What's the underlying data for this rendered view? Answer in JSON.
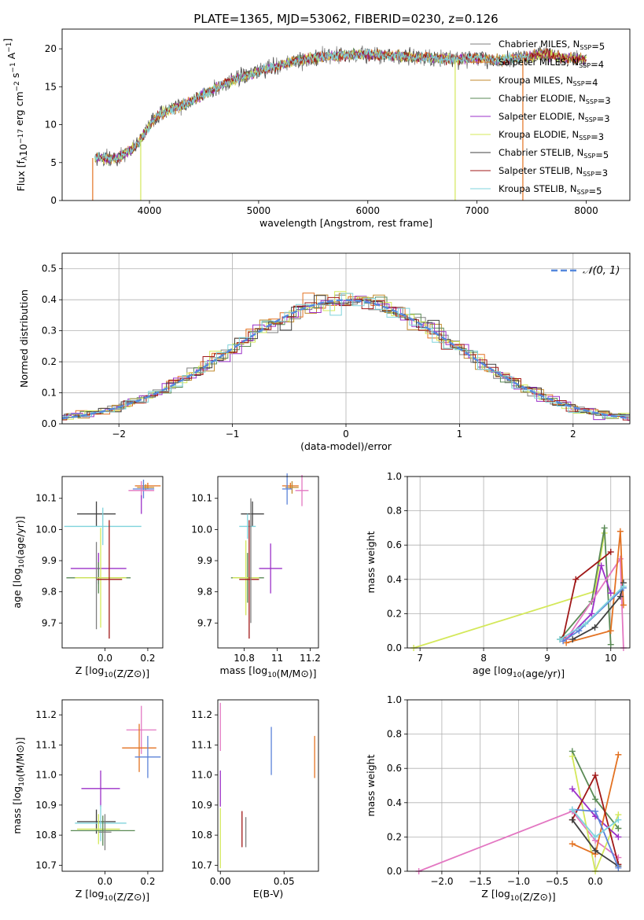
{
  "figure": {
    "title": "PLATE=1365, MJD=53062, FIBERID=0230, z=0.126"
  },
  "colors": {
    "chab_miles": "#7f7f7f",
    "salp_miles": "#e37222",
    "kroupa_miles": "#c08a2c",
    "chab_elodie": "#5a8a55",
    "salp_elodie": "#9b30c8",
    "kroupa_elodie": "#d4e85a",
    "chab_stelib": "#404040",
    "salp_stelib": "#a01818",
    "kroupa_stelib": "#7fd3dc",
    "gauss": "#5588dd",
    "pink": "#e377c2",
    "blue": "#5b82d8"
  },
  "chart_data": [
    {
      "id": "spectrum",
      "type": "line",
      "xlabel": "wavelength [Angstrom, rest frame]",
      "ylabel": "Flux [f_λ10^-17 erg cm^-2 s^-1 A^-1]",
      "xlim": [
        3200,
        8400
      ],
      "ylim": [
        0,
        22.6
      ],
      "xticks": [
        4000,
        5000,
        6000,
        7000,
        8000
      ],
      "yticks": [
        0,
        5,
        10,
        15,
        20
      ],
      "legend_position": "top-right",
      "series": [
        {
          "name": "Chabrier MILES, N_SSP=5",
          "color_key": "chab_miles"
        },
        {
          "name": "Salpeter MILES, N_SSP=4",
          "color_key": "salp_miles"
        },
        {
          "name": "Kroupa MILES, N_SSP=4",
          "color_key": "kroupa_miles"
        },
        {
          "name": "Chabrier ELODIE, N_SSP=3",
          "color_key": "chab_elodie"
        },
        {
          "name": "Salpeter ELODIE, N_SSP=3",
          "color_key": "salp_elodie"
        },
        {
          "name": "Kroupa ELODIE, N_SSP=3",
          "color_key": "kroupa_elodie"
        },
        {
          "name": "Chabrier STELIB, N_SSP=5",
          "color_key": "chab_stelib"
        },
        {
          "name": "Salpeter STELIB, N_SSP=3",
          "color_key": "salp_stelib"
        },
        {
          "name": "Kroupa STELIB, N_SSP=5",
          "color_key": "kroupa_stelib"
        }
      ],
      "approx_continuum": {
        "x": [
          3500,
          3700,
          3900,
          4000,
          4100,
          4300,
          4500,
          4700,
          5000,
          5300,
          5600,
          6000,
          6300,
          6600,
          6800,
          7000,
          7200,
          7400,
          7600,
          7800,
          8000
        ],
        "y": [
          5.6,
          5.5,
          7.5,
          10.0,
          11.5,
          12.5,
          14.0,
          15.5,
          17.0,
          18.3,
          19.0,
          19.3,
          19.0,
          18.8,
          18.6,
          18.8,
          18.4,
          18.8,
          19.4,
          18.8,
          18.6
        ]
      },
      "spikes": [
        {
          "x": 3480,
          "to": 0,
          "color_key": "salp_miles"
        },
        {
          "x": 3920,
          "to": 0,
          "color_key": "kroupa_elodie"
        },
        {
          "x": 6800,
          "to": 0,
          "color_key": "kroupa_elodie"
        },
        {
          "x": 7420,
          "to": 0,
          "color_key": "salp_miles"
        }
      ]
    },
    {
      "id": "residuals",
      "type": "line",
      "xlabel": "(data-model)/error",
      "ylabel": "Normed distribution",
      "xlim": [
        -2.5,
        2.5
      ],
      "ylim": [
        0,
        0.55
      ],
      "xticks": [
        -2,
        -1,
        0,
        1,
        2
      ],
      "yticks": [
        0.0,
        0.1,
        0.2,
        0.3,
        0.4,
        0.5
      ],
      "grid": true,
      "legend_position": "top-right",
      "gauss_label": "𝒩(0, 1)",
      "gauss": {
        "mean": 0,
        "sigma": 1
      }
    },
    {
      "id": "age_vs_Z",
      "type": "scatter",
      "xlabel": "Z [log10(Z/Z⊙)]",
      "ylabel": "age  [log10(age/yr)]",
      "xlim": [
        -0.2,
        0.27
      ],
      "ylim": [
        9.62,
        10.17
      ],
      "xticks": [
        0.0,
        0.2
      ],
      "yticks": [
        9.7,
        9.8,
        9.9,
        10.0,
        10.1
      ],
      "points": [
        {
          "x": 0.2,
          "y": 10.14,
          "xerr": 0.06,
          "yerr": 0.01,
          "color_key": "salp_miles"
        },
        {
          "x": 0.19,
          "y": 10.135,
          "xerr": 0.04,
          "yerr": 0.01,
          "color_key": "kroupa_miles"
        },
        {
          "x": 0.18,
          "y": 10.13,
          "xerr": 0.05,
          "yerr": 0.03,
          "color_key": "blue"
        },
        {
          "x": 0.17,
          "y": 10.125,
          "xerr": 0.06,
          "yerr": 0.03,
          "color_key": "pink"
        },
        {
          "x": 0.17,
          "y": 10.08,
          "xerr": 0.0,
          "yerr": 0.03,
          "color_key": "salp_elodie"
        },
        {
          "x": -0.04,
          "y": 10.05,
          "xerr": 0.09,
          "yerr": 0.04,
          "color_key": "chab_stelib"
        },
        {
          "x": -0.01,
          "y": 10.01,
          "xerr": 0.18,
          "yerr": 0.06,
          "color_key": "kroupa_stelib"
        },
        {
          "x": -0.03,
          "y": 9.875,
          "xerr": 0.13,
          "yerr": 0.05,
          "color_key": "salp_elodie"
        },
        {
          "x": -0.03,
          "y": 9.845,
          "xerr": 0.15,
          "yerr": 0.05,
          "color_key": "chab_elodie"
        },
        {
          "x": -0.02,
          "y": 9.845,
          "xerr": 0.12,
          "yerr": 0.16,
          "color_key": "kroupa_elodie"
        },
        {
          "x": 0.02,
          "y": 9.84,
          "xerr": 0.06,
          "yerr": 0.19,
          "color_key": "salp_stelib"
        },
        {
          "x": -0.04,
          "y": 9.82,
          "xerr": 0.0,
          "yerr": 0.14,
          "color_key": "chab_miles"
        }
      ]
    },
    {
      "id": "age_vs_mass",
      "type": "scatter",
      "xlabel": "mass [log10(M/M⊙)]",
      "ylabel": "",
      "xlim": [
        10.64,
        11.25
      ],
      "ylim": [
        9.62,
        10.17
      ],
      "xticks": [
        10.8,
        11.0,
        11.2
      ],
      "yticks": [
        9.7,
        9.8,
        9.9,
        10.0,
        10.1
      ],
      "points": [
        {
          "x": 11.08,
          "y": 10.14,
          "xerr": 0.05,
          "yerr": 0.01,
          "color_key": "salp_miles"
        },
        {
          "x": 11.09,
          "y": 10.135,
          "xerr": 0.04,
          "yerr": 0.02,
          "color_key": "kroupa_miles"
        },
        {
          "x": 11.06,
          "y": 10.13,
          "xerr": 0.03,
          "yerr": 0.05,
          "color_key": "blue"
        },
        {
          "x": 11.15,
          "y": 10.125,
          "xerr": 0.04,
          "yerr": 0.05,
          "color_key": "pink"
        },
        {
          "x": 10.85,
          "y": 10.05,
          "xerr": 0.07,
          "yerr": 0.04,
          "color_key": "chab_stelib"
        },
        {
          "x": 10.82,
          "y": 10.01,
          "xerr": 0.05,
          "yerr": 0.04,
          "color_key": "kroupa_stelib"
        },
        {
          "x": 10.96,
          "y": 9.875,
          "xerr": 0.07,
          "yerr": 0.08,
          "color_key": "salp_elodie"
        },
        {
          "x": 10.82,
          "y": 9.845,
          "xerr": 0.1,
          "yerr": 0.08,
          "color_key": "chab_elodie"
        },
        {
          "x": 10.81,
          "y": 9.845,
          "xerr": 0.08,
          "yerr": 0.12,
          "color_key": "kroupa_elodie"
        },
        {
          "x": 10.83,
          "y": 9.84,
          "xerr": 0.06,
          "yerr": 0.19,
          "color_key": "salp_stelib"
        },
        {
          "x": 10.84,
          "y": 9.9,
          "xerr": 0.0,
          "yerr": 0.2,
          "color_key": "chab_miles"
        }
      ]
    },
    {
      "id": "weight_vs_age",
      "type": "line",
      "xlabel": "age  [log10(age/yr)]",
      "ylabel": "mass weight",
      "xlim": [
        6.8,
        10.3
      ],
      "ylim": [
        0,
        1.0
      ],
      "xticks": [
        7,
        8,
        9,
        10
      ],
      "yticks": [
        0.0,
        0.2,
        0.4,
        0.6,
        0.8,
        1.0
      ],
      "grid": true,
      "series": [
        {
          "color_key": "kroupa_elodie",
          "x": [
            6.9,
            9.75,
            9.9
          ],
          "y": [
            0.0,
            0.33,
            0.67
          ]
        },
        {
          "color_key": "chab_elodie",
          "x": [
            9.2,
            9.7,
            9.9,
            10.0
          ],
          "y": [
            0.05,
            0.27,
            0.7,
            0.02
          ]
        },
        {
          "color_key": "salp_stelib",
          "x": [
            9.25,
            9.45,
            10.0
          ],
          "y": [
            0.06,
            0.4,
            0.56
          ]
        },
        {
          "color_key": "salp_elodie",
          "x": [
            9.3,
            9.7,
            9.85,
            10.0
          ],
          "y": [
            0.05,
            0.2,
            0.48,
            0.32
          ]
        },
        {
          "color_key": "pink",
          "x": [
            9.3,
            10.15,
            10.2
          ],
          "y": [
            0.05,
            0.52,
            0.0
          ]
        },
        {
          "color_key": "salp_miles",
          "x": [
            9.3,
            10.0,
            10.15,
            10.2
          ],
          "y": [
            0.03,
            0.1,
            0.68,
            0.25
          ]
        },
        {
          "color_key": "chab_stelib",
          "x": [
            9.4,
            9.75,
            10.15,
            10.2
          ],
          "y": [
            0.05,
            0.12,
            0.3,
            0.38
          ]
        },
        {
          "color_key": "blue",
          "x": [
            9.25,
            9.5,
            10.2
          ],
          "y": [
            0.04,
            0.1,
            0.35
          ]
        },
        {
          "color_key": "kroupa_stelib",
          "x": [
            9.2,
            9.6,
            10.2
          ],
          "y": [
            0.05,
            0.14,
            0.36
          ]
        }
      ]
    },
    {
      "id": "mass_vs_Z",
      "type": "scatter",
      "xlabel": "Z [log10(Z/Z⊙)]",
      "ylabel": "mass [log10(M/M⊙)]",
      "xlim": [
        -0.2,
        0.27
      ],
      "ylim": [
        10.68,
        11.25
      ],
      "xticks": [
        0.0,
        0.2
      ],
      "yticks": [
        10.7,
        10.8,
        10.9,
        11.0,
        11.1,
        11.2
      ],
      "points": [
        {
          "x": 0.17,
          "y": 11.15,
          "xerr": 0.07,
          "yerr": 0.08,
          "color_key": "pink"
        },
        {
          "x": 0.16,
          "y": 11.09,
          "xerr": 0.08,
          "yerr": 0.08,
          "color_key": "salp_miles"
        },
        {
          "x": 0.2,
          "y": 11.06,
          "xerr": 0.06,
          "yerr": 0.07,
          "color_key": "blue"
        },
        {
          "x": -0.02,
          "y": 10.955,
          "xerr": 0.09,
          "yerr": 0.06,
          "color_key": "salp_elodie"
        },
        {
          "x": -0.04,
          "y": 10.845,
          "xerr": 0.09,
          "yerr": 0.04,
          "color_key": "chab_stelib"
        },
        {
          "x": -0.02,
          "y": 10.84,
          "xerr": 0.12,
          "yerr": 0.06,
          "color_key": "kroupa_stelib"
        },
        {
          "x": -0.03,
          "y": 10.82,
          "xerr": 0.1,
          "yerr": 0.05,
          "color_key": "kroupa_elodie"
        },
        {
          "x": -0.01,
          "y": 10.815,
          "xerr": 0.15,
          "yerr": 0.05,
          "color_key": "chab_elodie"
        },
        {
          "x": 0.0,
          "y": 10.81,
          "xerr": 0.03,
          "yerr": 0.06,
          "color_key": "chab_miles"
        }
      ]
    },
    {
      "id": "mass_vs_EBV",
      "type": "scatter",
      "xlabel": "E(B-V)",
      "ylabel": "",
      "xlim": [
        -0.002,
        0.077
      ],
      "ylim": [
        10.68,
        11.25
      ],
      "xticks": [
        0.0,
        0.05
      ],
      "xticklabels": [
        "0.00",
        "0.05"
      ],
      "yticks": [
        10.7,
        10.8,
        10.9,
        11.0,
        11.1,
        11.2
      ],
      "points": [
        {
          "x": 0.0,
          "y": 11.16,
          "xerr": 0,
          "yerr": 0.08,
          "color_key": "pink"
        },
        {
          "x": 0.04,
          "y": 11.08,
          "xerr": 0,
          "yerr": 0.08,
          "color_key": "blue"
        },
        {
          "x": 0.074,
          "y": 11.06,
          "xerr": 0,
          "yerr": 0.07,
          "color_key": "salp_miles"
        },
        {
          "x": 0.0,
          "y": 10.955,
          "xerr": 0,
          "yerr": 0.06,
          "color_key": "salp_elodie"
        },
        {
          "x": 0.0,
          "y": 10.79,
          "xerr": 0,
          "yerr": 0.1,
          "color_key": "kroupa_elodie"
        },
        {
          "x": 0.017,
          "y": 10.82,
          "xerr": 0,
          "yerr": 0.06,
          "color_key": "salp_stelib"
        },
        {
          "x": 0.02,
          "y": 10.81,
          "xerr": 0,
          "yerr": 0.05,
          "color_key": "chab_miles"
        }
      ]
    },
    {
      "id": "weight_vs_Z",
      "type": "line",
      "xlabel": "Z [log10(Z/Z⊙)]",
      "ylabel": "mass weight",
      "xlim": [
        -2.45,
        0.45
      ],
      "ylim": [
        0,
        1.0
      ],
      "xticks": [
        -2.0,
        -1.5,
        -1.0,
        -0.5,
        0.0
      ],
      "yticks": [
        0.0,
        0.2,
        0.4,
        0.6,
        0.8,
        1.0
      ],
      "grid": true,
      "series": [
        {
          "color_key": "pink",
          "x": [
            -2.3,
            -0.3,
            0.0,
            0.3
          ],
          "y": [
            0.0,
            0.35,
            0.18,
            0.08
          ]
        },
        {
          "color_key": "chab_elodie",
          "x": [
            -0.3,
            0.0,
            0.3
          ],
          "y": [
            0.7,
            0.42,
            0.25
          ]
        },
        {
          "color_key": "kroupa_elodie",
          "x": [
            -0.3,
            0.0,
            0.3
          ],
          "y": [
            0.67,
            0.0,
            0.33
          ]
        },
        {
          "color_key": "salp_elodie",
          "x": [
            -0.3,
            0.0,
            0.3
          ],
          "y": [
            0.48,
            0.32,
            0.2
          ]
        },
        {
          "color_key": "salp_miles",
          "x": [
            -0.3,
            0.0,
            0.3
          ],
          "y": [
            0.16,
            0.1,
            0.68
          ]
        },
        {
          "color_key": "salp_stelib",
          "x": [
            -0.3,
            0.0,
            0.3
          ],
          "y": [
            0.3,
            0.56,
            0.04
          ]
        },
        {
          "color_key": "chab_stelib",
          "x": [
            -0.3,
            0.0,
            0.3
          ],
          "y": [
            0.3,
            0.12,
            0.03
          ]
        },
        {
          "color_key": "blue",
          "x": [
            -0.3,
            0.0,
            0.3
          ],
          "y": [
            0.36,
            0.35,
            0.02
          ]
        },
        {
          "color_key": "kroupa_stelib",
          "x": [
            -0.3,
            0.0,
            0.3
          ],
          "y": [
            0.36,
            0.2,
            0.3
          ]
        }
      ]
    }
  ]
}
